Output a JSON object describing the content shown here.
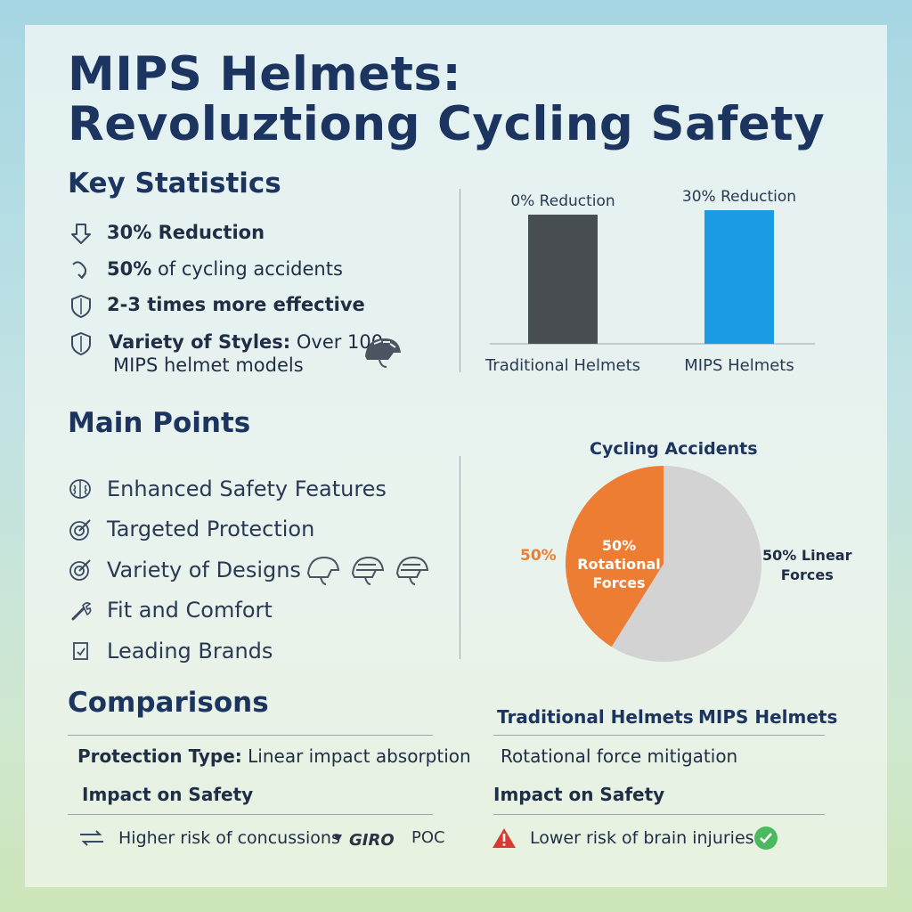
{
  "title": {
    "line1": "MIPS Helmets:",
    "line2": "Revoluztiong Cycling Safety"
  },
  "key_statistics": {
    "heading": "Key Statistics",
    "items": [
      {
        "icon": "arrow-down-icon",
        "bold": "30% Reduction",
        "text": ""
      },
      {
        "icon": "rotate-arrow-icon",
        "bold": "50%",
        "text": " of cycling accidents"
      },
      {
        "icon": "shield-icon",
        "bold": "2-3 times more effective",
        "text": ""
      },
      {
        "icon": "shield-icon",
        "bold": "Variety of Styles:",
        "text": " Over 100",
        "line2": "MIPS helmet models"
      }
    ]
  },
  "main_points": {
    "heading": "Main Points",
    "items": [
      {
        "icon": "brain-icon",
        "label": "Enhanced Safety Features"
      },
      {
        "icon": "target-icon",
        "label": "Targeted Protection"
      },
      {
        "icon": "target-icon",
        "label": "Variety of Designs"
      },
      {
        "icon": "wrench-icon",
        "label": "Fit and Comfort"
      },
      {
        "icon": "badge-icon",
        "label": "Leading Brands"
      }
    ]
  },
  "comparisons": {
    "heading": "Comparisons",
    "col_traditional": "Traditional Helmets",
    "col_mips": "MIPS Helmets",
    "protection_label": "Protection Type:",
    "protection_traditional": " Linear impact absorption",
    "protection_mips": "Rotational force mitigation",
    "impact_label_left": "Impact on Safety",
    "impact_label_right": "Impact on Safety",
    "impact_traditional": "Higher risk of concussions",
    "impact_mips": "Lower risk of brain injuries",
    "brands": [
      "GIRO",
      "POC"
    ]
  },
  "colors": {
    "title": "#1c3560",
    "bar_traditional": "#474d51",
    "bar_mips": "#1a9be3",
    "pie_rotational": "#ec7d32",
    "pie_linear": "#d3d3d3",
    "warning": "#d93a32",
    "check": "#4cb860"
  },
  "chart_data": [
    {
      "type": "bar",
      "title": "",
      "categories": [
        "Traditional Helmets",
        "MIPS Helmets"
      ],
      "data_labels": [
        "0% Reduction",
        "30% Reduction"
      ],
      "values": [
        0,
        30
      ],
      "note": ""
    },
    {
      "type": "pie",
      "title": "Cycling Accidents",
      "slices": [
        {
          "label": "Rotational Forces",
          "value": 50,
          "display_inside": "50%\nRotational\nForces",
          "display_outside": "50%"
        },
        {
          "label": "Linear Forces",
          "value": 50,
          "display_outside": "50% Linear\nForces"
        }
      ]
    }
  ]
}
